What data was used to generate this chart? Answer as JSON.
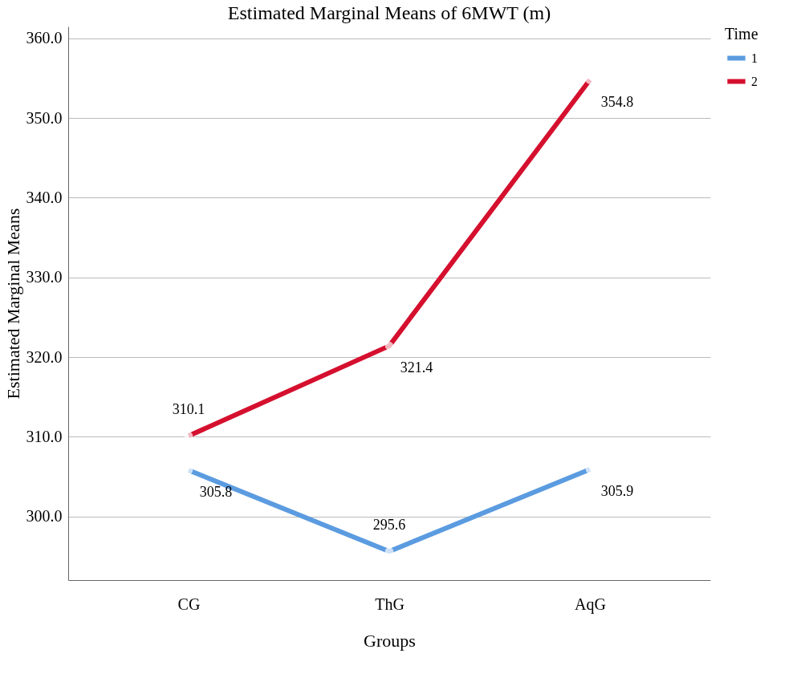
{
  "chart_data": {
    "type": "line",
    "title": "Estimated Marginal Means of 6MWT (m)",
    "xlabel": "Groups",
    "ylabel": "Estimated Marginal Means",
    "legend_title": "Time",
    "categories": [
      "CG",
      "ThG",
      "AqG"
    ],
    "series": [
      {
        "name": "1",
        "color": "#5b9be0",
        "values": [
          305.8,
          295.6,
          305.9
        ]
      },
      {
        "name": "2",
        "color": "#d5102e",
        "values": [
          310.1,
          321.4,
          354.8
        ]
      }
    ],
    "ylim": [
      292,
      361.5
    ],
    "yticks": [
      {
        "value": 300,
        "label": "300.0"
      },
      {
        "value": 310,
        "label": "310.0"
      },
      {
        "value": 320,
        "label": "320.0"
      },
      {
        "value": 330,
        "label": "330.0"
      },
      {
        "value": 340,
        "label": "340.0"
      },
      {
        "value": 350,
        "label": "350.0"
      },
      {
        "value": 360,
        "label": "360.0"
      }
    ],
    "grid": "y",
    "legend": "right",
    "marker": "circle",
    "line_style": "solid",
    "data_labels": true
  }
}
